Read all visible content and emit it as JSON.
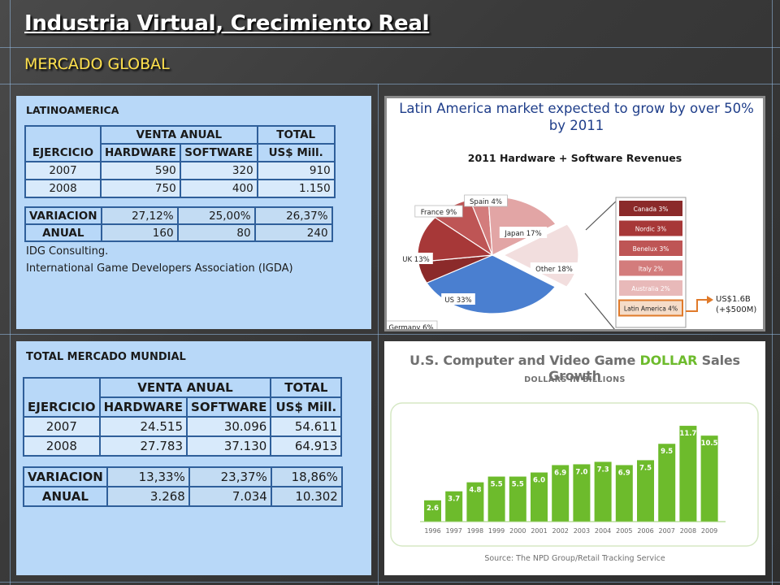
{
  "slide": {
    "title": "Industria Virtual, Crecimiento Real",
    "subtitle": "MERCADO GLOBAL"
  },
  "latam": {
    "section_title": "LATINOAMERICA",
    "headers": {
      "ejercicio": "EJERCICIO",
      "venta_anual": "VENTA ANUAL",
      "hardware": "HARDWARE",
      "software": "SOFTWARE",
      "total_1": "TOTAL",
      "total_2": "US$ Mill."
    },
    "rows": [
      {
        "year": "2007",
        "hardware": "590",
        "software": "320",
        "total": "910"
      },
      {
        "year": "2008",
        "hardware": "750",
        "software": "400",
        "total": "1.150"
      }
    ],
    "variacion_label_1": "VARIACION",
    "variacion_label_2": "ANUAL",
    "variacion_pct": {
      "hardware": "27,12%",
      "software": "25,00%",
      "total": "26,37%"
    },
    "variacion_abs": {
      "hardware": "160",
      "software": "80",
      "total": "240"
    },
    "sources": [
      "IDG Consulting.",
      "International Game Developers Association (IGDA)"
    ]
  },
  "mundial": {
    "section_title": "TOTAL MERCADO MUNDIAL",
    "headers": {
      "ejercicio": "EJERCICIO",
      "venta_anual": "VENTA ANUAL",
      "hardware": "HARDWARE",
      "software": "SOFTWARE",
      "total_1": "TOTAL",
      "total_2": "US$ Mill."
    },
    "rows": [
      {
        "year": "2007",
        "hardware": "24.515",
        "software": "30.096",
        "total": "54.611"
      },
      {
        "year": "2008",
        "hardware": "27.783",
        "software": "37.130",
        "total": "64.913"
      }
    ],
    "variacion_label_1": "VARIACION",
    "variacion_label_2": "ANUAL",
    "variacion_pct": {
      "hardware": "13,33%",
      "software": "23,37%",
      "total": "18,86%"
    },
    "variacion_abs": {
      "hardware": "3.268",
      "software": "7.034",
      "total": "10.302"
    }
  },
  "chart_data": [
    {
      "type": "pie",
      "title": "Latin America market expected to grow by over 50% by 2011",
      "subtitle": "2011 Hardware + Software Revenues",
      "slices": [
        {
          "label": "US 33%",
          "value": 33,
          "color": "#4a7fd0"
        },
        {
          "label": "Germany 6%",
          "value": 6,
          "color": "#8b2a2a"
        },
        {
          "label": "UK 13%",
          "value": 13,
          "color": "#a73838"
        },
        {
          "label": "France 9%",
          "value": 9,
          "color": "#be5555"
        },
        {
          "label": "Spain 4%",
          "value": 4,
          "color": "#d37c7c"
        },
        {
          "label": "Japan 17%",
          "value": 17,
          "color": "#e2a5a5"
        },
        {
          "label": "Other 18%",
          "value": 18,
          "color": "#f2dede"
        }
      ],
      "breakdown": [
        {
          "label": "Canada 3%",
          "color": "#8b2a2a"
        },
        {
          "label": "Nordic 3%",
          "color": "#a73838"
        },
        {
          "label": "Benelux 3%",
          "color": "#be5555"
        },
        {
          "label": "Italy 2%",
          "color": "#d37c7c"
        },
        {
          "label": "Australia 2%",
          "color": "#e8b9b9"
        },
        {
          "label": "Latin America 4%",
          "color": "#f5dcc8",
          "highlight": true
        }
      ],
      "callout": [
        "US$1.6B",
        "(+$500M)"
      ]
    },
    {
      "type": "bar",
      "title_parts": [
        "U.S. Computer and Video Game ",
        "DOLLAR",
        " Sales Growth"
      ],
      "subtitle": "DOLLARS IN BILLIONS",
      "source": "Source: The NPD Group/Retail Tracking Service",
      "categories": [
        "1996",
        "1997",
        "1998",
        "1999",
        "2000",
        "2001",
        "2002",
        "2003",
        "2004",
        "2005",
        "2006",
        "2007",
        "2008",
        "2009"
      ],
      "values": [
        2.6,
        3.7,
        4.8,
        5.5,
        5.5,
        6.0,
        6.9,
        7.0,
        7.3,
        6.9,
        7.5,
        9.5,
        11.7,
        10.5
      ],
      "labels": [
        "2.6",
        "3.7",
        "4.8",
        "5.5",
        "5.5",
        "6.0",
        "6.9",
        "7.0",
        "7.3",
        "6.9",
        "7.5",
        "9.5",
        "11.7",
        "10.5"
      ],
      "bar_color": "#6dbb2c",
      "ylim": [
        0,
        12.5
      ]
    }
  ]
}
